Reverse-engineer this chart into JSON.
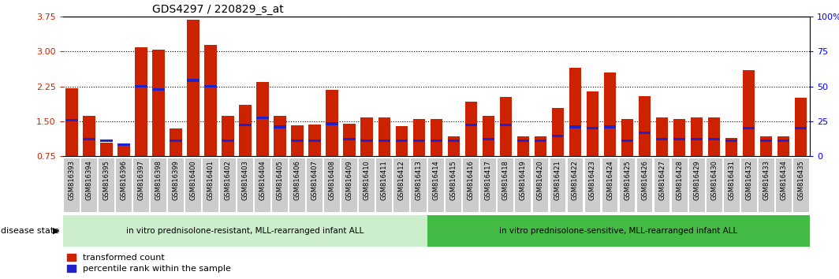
{
  "title": "GDS4297 / 220829_s_at",
  "samples": [
    "GSM816393",
    "GSM816394",
    "GSM816395",
    "GSM816396",
    "GSM816397",
    "GSM816398",
    "GSM816399",
    "GSM816400",
    "GSM816401",
    "GSM816402",
    "GSM816403",
    "GSM816404",
    "GSM816405",
    "GSM816406",
    "GSM816407",
    "GSM816408",
    "GSM816409",
    "GSM816410",
    "GSM816411",
    "GSM816412",
    "GSM816413",
    "GSM816414",
    "GSM816415",
    "GSM816416",
    "GSM816417",
    "GSM816418",
    "GSM816419",
    "GSM816420",
    "GSM816421",
    "GSM816422",
    "GSM816423",
    "GSM816424",
    "GSM816425",
    "GSM816426",
    "GSM816427",
    "GSM816428",
    "GSM816429",
    "GSM816430",
    "GSM816431",
    "GSM816432",
    "GSM816433",
    "GSM816434",
    "GSM816435"
  ],
  "transformed_count": [
    2.22,
    1.62,
    1.05,
    1.02,
    3.1,
    3.05,
    1.35,
    3.68,
    3.15,
    1.62,
    1.85,
    2.35,
    1.62,
    1.42,
    1.44,
    2.18,
    1.45,
    1.58,
    1.58,
    1.4,
    1.55,
    1.55,
    1.18,
    1.92,
    1.62,
    2.02,
    1.18,
    1.18,
    1.78,
    2.65,
    2.15,
    2.55,
    1.55,
    2.05,
    1.58,
    1.55,
    1.58,
    1.58,
    1.15,
    2.6,
    1.18,
    1.18,
    2.0
  ],
  "percentile_rank": [
    1.52,
    1.12,
    1.08,
    1.0,
    2.25,
    2.18,
    1.08,
    2.38,
    2.25,
    1.08,
    1.42,
    1.58,
    1.38,
    1.08,
    1.08,
    1.45,
    1.12,
    1.08,
    1.08,
    1.08,
    1.08,
    1.08,
    1.08,
    1.42,
    1.12,
    1.42,
    1.08,
    1.08,
    1.18,
    1.38,
    1.35,
    1.38,
    1.08,
    1.25,
    1.12,
    1.12,
    1.12,
    1.12,
    1.08,
    1.35,
    1.08,
    1.08,
    1.35
  ],
  "group1_count": 21,
  "group2_count": 22,
  "group1_label": "in vitro prednisolone-resistant, MLL-rearranged infant ALL",
  "group2_label": "in vitro prednisolone-sensitive, MLL-rearranged infant ALL",
  "disease_state_label": "disease state",
  "ylim_left": [
    0.75,
    3.75
  ],
  "yticks_left": [
    0.75,
    1.5,
    2.25,
    3.0,
    3.75
  ],
  "ylim_right": [
    0,
    100
  ],
  "yticks_right": [
    0,
    25,
    50,
    75,
    100
  ],
  "bar_color": "#cc2200",
  "dot_color": "#2222cc",
  "group1_bg": "#cceecc",
  "group2_bg": "#44bb44",
  "tick_bg": "#cccccc",
  "legend_red_label": "transformed count",
  "legend_blue_label": "percentile rank within the sample",
  "ybase": 0.75
}
